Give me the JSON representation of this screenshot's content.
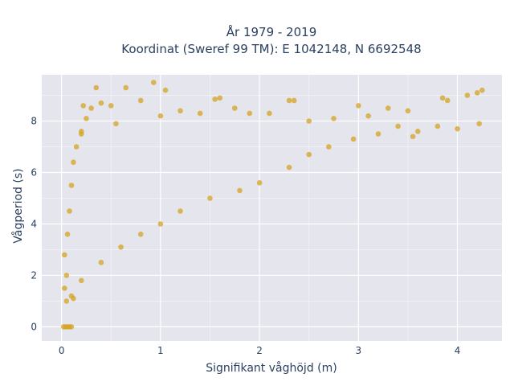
{
  "chart_data": {
    "type": "scatter",
    "title_line1": "År 1979 - 2019",
    "title_line2": "Koordinat (Sweref 99 TM): E 1042148, N 6692548",
    "xlabel": "Signifikant våghöjd (m)",
    "ylabel": "Vågperiod (s)",
    "xlim": [
      -0.2,
      4.45
    ],
    "ylim": [
      -0.55,
      9.8
    ],
    "x_ticks": [
      0,
      1,
      2,
      3,
      4
    ],
    "y_ticks": [
      0,
      2,
      4,
      6,
      8
    ],
    "grid": true,
    "marker_color": "#d4a320",
    "series": [
      {
        "points": [
          [
            0.02,
            0.0
          ],
          [
            0.04,
            0.0
          ],
          [
            0.06,
            0.0
          ],
          [
            0.08,
            0.0
          ],
          [
            0.1,
            0.0
          ],
          [
            0.03,
            1.5
          ],
          [
            0.05,
            2.0
          ],
          [
            0.03,
            2.8
          ],
          [
            0.06,
            3.6
          ],
          [
            0.08,
            4.5
          ],
          [
            0.1,
            5.5
          ],
          [
            0.12,
            6.4
          ],
          [
            0.15,
            7.0
          ],
          [
            0.2,
            7.6
          ],
          [
            0.25,
            8.1
          ],
          [
            0.3,
            8.5
          ],
          [
            0.35,
            9.3
          ],
          [
            0.4,
            8.7
          ],
          [
            0.5,
            8.6
          ],
          [
            0.65,
            9.3
          ],
          [
            0.8,
            8.8
          ],
          [
            0.93,
            9.5
          ],
          [
            1.0,
            8.2
          ],
          [
            1.05,
            9.2
          ],
          [
            1.2,
            8.4
          ],
          [
            1.4,
            8.3
          ],
          [
            1.6,
            8.9
          ],
          [
            1.75,
            8.5
          ],
          [
            1.9,
            8.3
          ],
          [
            2.1,
            8.3
          ],
          [
            2.3,
            8.8
          ],
          [
            2.5,
            8.0
          ],
          [
            2.75,
            8.1
          ],
          [
            3.0,
            8.6
          ],
          [
            3.1,
            8.2
          ],
          [
            3.3,
            8.5
          ],
          [
            3.5,
            8.4
          ],
          [
            3.6,
            7.6
          ],
          [
            3.8,
            7.8
          ],
          [
            4.0,
            7.7
          ],
          [
            4.2,
            9.1
          ],
          [
            4.25,
            9.2
          ],
          [
            3.85,
            8.9
          ],
          [
            3.9,
            8.8
          ],
          [
            4.1,
            9.0
          ],
          [
            4.22,
            7.9
          ],
          [
            3.55,
            7.4
          ],
          [
            3.4,
            7.8
          ],
          [
            3.2,
            7.5
          ],
          [
            2.95,
            7.3
          ],
          [
            2.7,
            7.0
          ],
          [
            2.5,
            6.7
          ],
          [
            2.3,
            6.2
          ],
          [
            2.0,
            5.6
          ],
          [
            1.8,
            5.3
          ],
          [
            1.5,
            5.0
          ],
          [
            1.2,
            4.5
          ],
          [
            1.0,
            4.0
          ],
          [
            0.8,
            3.6
          ],
          [
            0.6,
            3.1
          ],
          [
            0.4,
            2.5
          ],
          [
            0.2,
            1.8
          ],
          [
            0.1,
            1.2
          ],
          [
            0.05,
            1.0
          ],
          [
            0.12,
            1.1
          ],
          [
            1.55,
            8.85
          ],
          [
            2.35,
            8.8
          ],
          [
            0.2,
            7.5
          ],
          [
            0.22,
            8.6
          ],
          [
            0.55,
            7.9
          ]
        ]
      }
    ]
  }
}
